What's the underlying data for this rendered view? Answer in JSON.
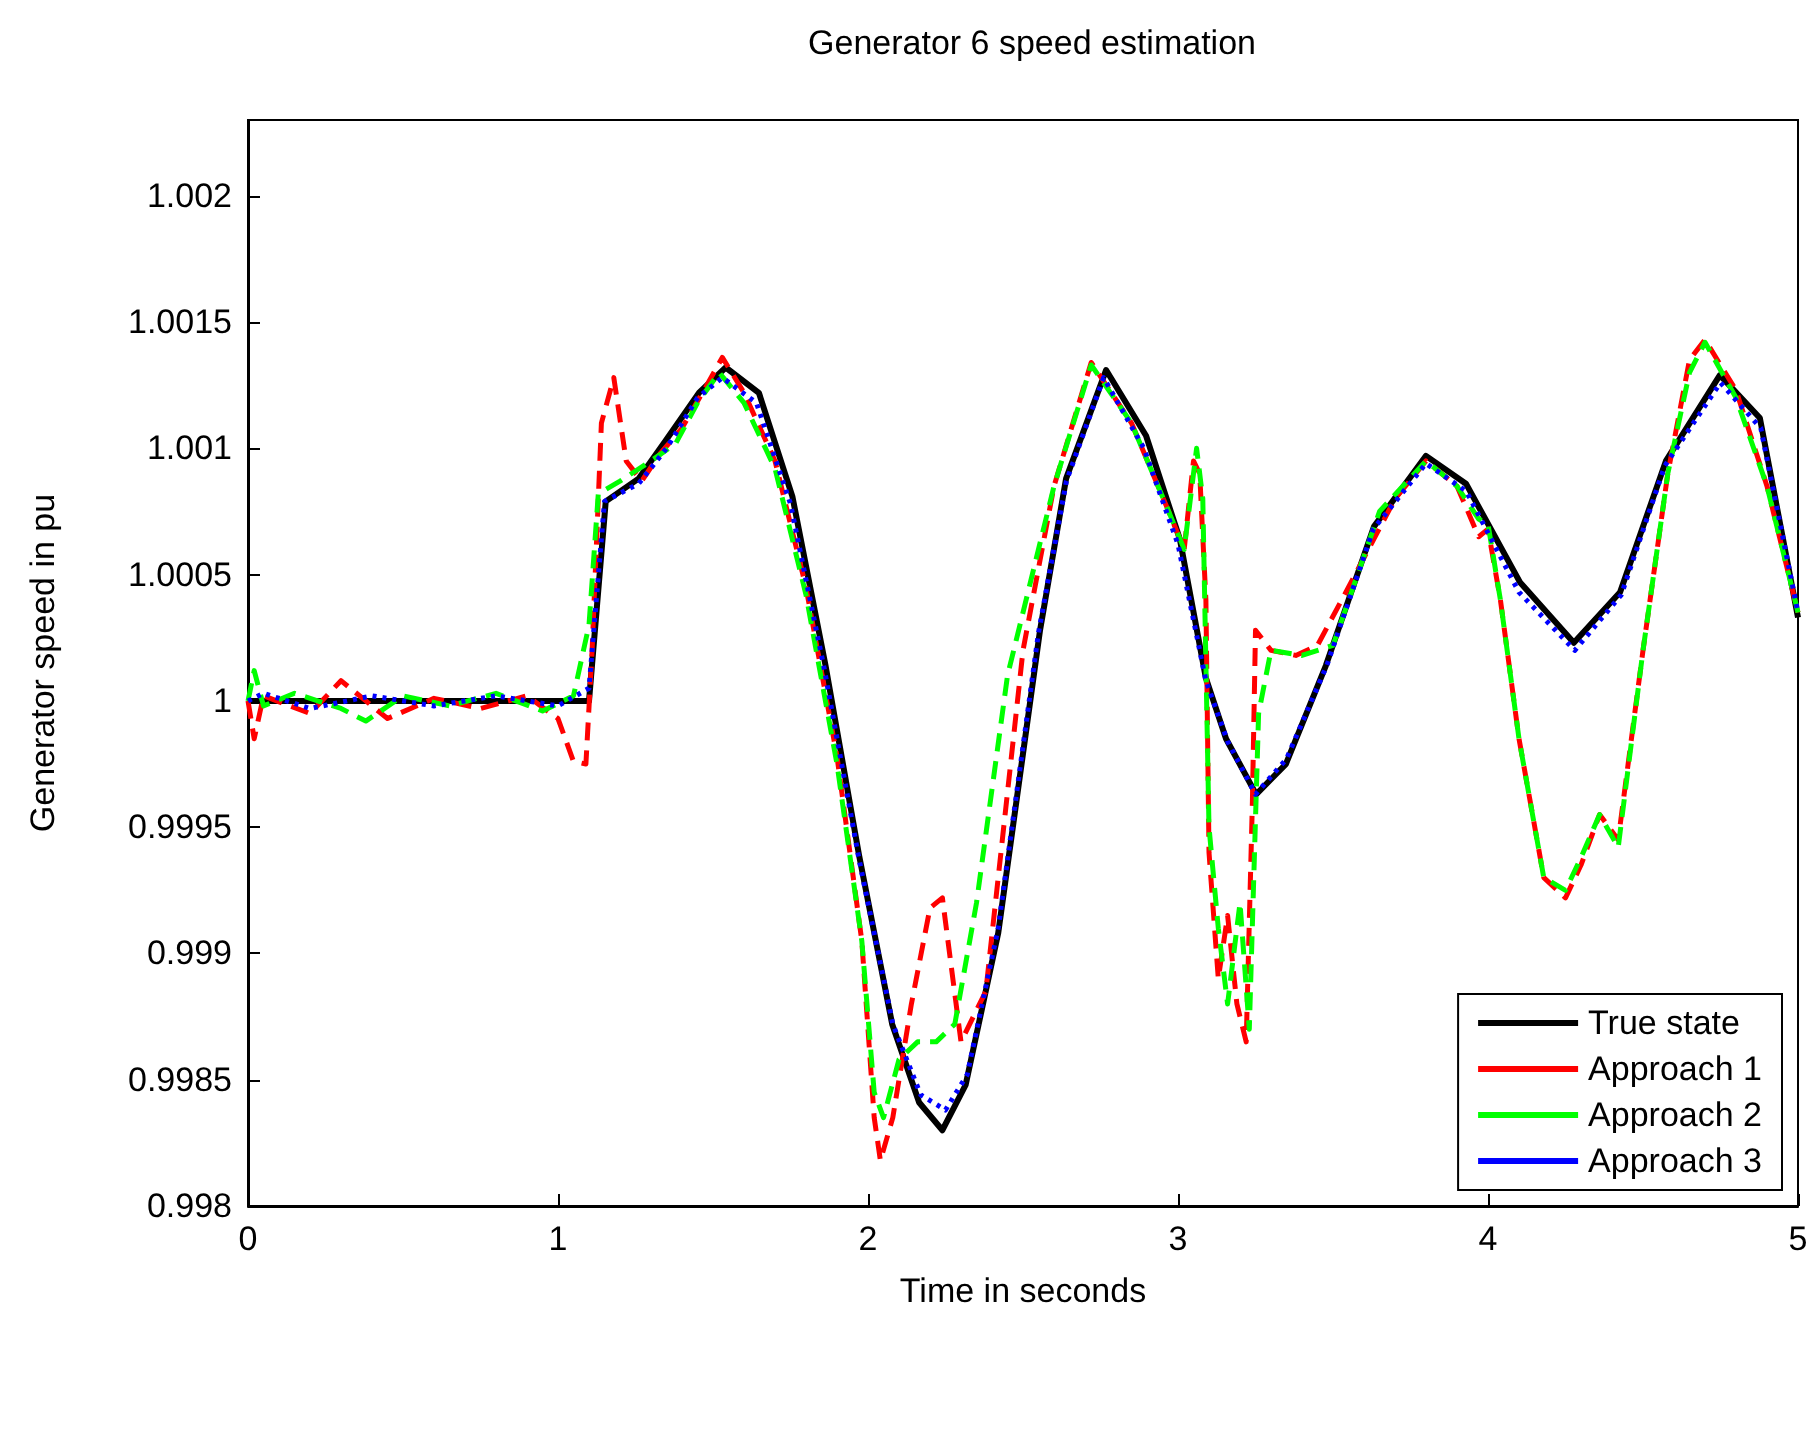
{
  "chart_data": {
    "type": "line",
    "title": "Generator 6 speed estimation",
    "xlabel": "Time in seconds",
    "ylabel": "Generator speed in pu",
    "xlim": [
      0,
      5
    ],
    "xticks": [
      0,
      1,
      2,
      3,
      4,
      5
    ],
    "ylim": [
      0.998,
      1.0023
    ],
    "yticks": [
      0.998,
      0.9985,
      0.999,
      0.9995,
      1,
      1.0005,
      1.001,
      1.0015,
      1.002
    ],
    "grid": false,
    "legend": "bottom right",
    "marker": "none",
    "series": [
      {
        "name": "True state",
        "color": "#000000",
        "line_style": "solid",
        "x": [
          0,
          1.1,
          1.154,
          1.26,
          1.347,
          1.455,
          1.541,
          1.648,
          1.756,
          1.863,
          1.971,
          2.078,
          2.165,
          2.24,
          2.315,
          2.42,
          2.555,
          2.639,
          2.768,
          2.897,
          3.006,
          3.09,
          3.155,
          3.252,
          3.348,
          3.477,
          3.632,
          3.8,
          3.929,
          4.103,
          4.277,
          4.426,
          4.574,
          4.748,
          4.877,
          5
        ],
        "values": [
          1,
          1,
          1.00079,
          1.00088,
          1.00103,
          1.00122,
          1.00132,
          1.00122,
          1.00081,
          1.00014,
          0.99939,
          0.99872,
          0.99841,
          0.9983,
          0.99848,
          0.99908,
          1.00028,
          1.00088,
          1.00131,
          1.00105,
          1.00064,
          1.00009,
          0.99985,
          0.99963,
          0.99975,
          1.00014,
          1.00069,
          1.00097,
          1.00086,
          1.00047,
          1.00023,
          1.00043,
          1.00095,
          1.00129,
          1.00112,
          1.00033
        ]
      },
      {
        "name": "Approach 1",
        "color": "#ff0000",
        "line_style": "dashed",
        "x": [
          0,
          0.02,
          0.05,
          0.2,
          0.3,
          0.35,
          0.45,
          0.6,
          0.75,
          0.9,
          1.0,
          1.05,
          1.09,
          1.11,
          1.14,
          1.18,
          1.22,
          1.27,
          1.33,
          1.4,
          1.48,
          1.53,
          1.6,
          1.7,
          1.8,
          1.9,
          1.98,
          2.02,
          2.04,
          2.08,
          2.14,
          2.2,
          2.24,
          2.3,
          2.38,
          2.5,
          2.6,
          2.72,
          2.85,
          2.97,
          3.02,
          3.05,
          3.07,
          3.09,
          3.1,
          3.13,
          3.16,
          3.19,
          3.22,
          3.24,
          3.25,
          3.3,
          3.38,
          3.45,
          3.55,
          3.7,
          3.8,
          3.9,
          3.97,
          4.0,
          4.04,
          4.1,
          4.18,
          4.25,
          4.3,
          4.36,
          4.42,
          4.5,
          4.58,
          4.65,
          4.7,
          4.8,
          4.9,
          5
        ],
        "values": [
          1,
          0.99985,
          1.00002,
          0.99995,
          1.00008,
          1.00003,
          0.99993,
          1.00001,
          0.99997,
          1.00002,
          0.99993,
          0.99976,
          0.99975,
          1.0002,
          1.0011,
          1.00128,
          1.00095,
          1.00087,
          1.00098,
          1.00108,
          1.00125,
          1.00136,
          1.00122,
          1.00095,
          1.00045,
          0.99978,
          0.99905,
          0.99835,
          0.99818,
          0.99835,
          0.9988,
          0.99918,
          0.99922,
          0.99865,
          0.99885,
          1.0002,
          1.00085,
          1.00134,
          1.0011,
          1.00075,
          1.0006,
          1.00095,
          1.0009,
          1.0004,
          0.9994,
          0.9989,
          0.99915,
          0.9988,
          0.99865,
          0.9996,
          1.00028,
          1.0002,
          1.00018,
          1.00022,
          1.00045,
          1.0008,
          1.00095,
          1.00085,
          1.00065,
          1.00068,
          1.0004,
          0.99985,
          0.9993,
          0.99922,
          0.99935,
          0.99955,
          0.99945,
          1.0002,
          1.0009,
          1.00135,
          1.00143,
          1.00123,
          1.00085,
          1.00035
        ]
      },
      {
        "name": "Approach 2",
        "color": "#00ff00",
        "line_style": "dashed",
        "x": [
          0,
          0.02,
          0.05,
          0.15,
          0.3,
          0.38,
          0.5,
          0.65,
          0.8,
          0.95,
          1.05,
          1.1,
          1.13,
          1.2,
          1.3,
          1.38,
          1.45,
          1.52,
          1.6,
          1.7,
          1.8,
          1.9,
          1.98,
          2.02,
          2.05,
          2.1,
          2.16,
          2.22,
          2.28,
          2.35,
          2.45,
          2.6,
          2.72,
          2.85,
          2.97,
          3.02,
          3.06,
          3.08,
          3.1,
          3.13,
          3.16,
          3.2,
          3.23,
          3.26,
          3.3,
          3.4,
          3.5,
          3.65,
          3.8,
          3.9,
          3.97,
          4.0,
          4.04,
          4.1,
          4.18,
          4.25,
          4.3,
          4.36,
          4.42,
          4.5,
          4.58,
          4.65,
          4.7,
          4.8,
          4.9,
          5
        ],
        "values": [
          1,
          1.00012,
          0.99998,
          1.00003,
          0.99997,
          0.99992,
          1.00002,
          0.99998,
          1.00003,
          0.99996,
          1.00002,
          1.0003,
          1.00082,
          1.00087,
          1.00095,
          1.00102,
          1.00118,
          1.0013,
          1.00118,
          1.00092,
          1.00042,
          0.99975,
          0.99905,
          0.99845,
          0.99835,
          0.99858,
          0.99865,
          0.99865,
          0.99872,
          0.9992,
          1.0001,
          1.00085,
          1.00133,
          1.0011,
          1.00075,
          1.0006,
          1.001,
          1.0008,
          0.9995,
          0.9991,
          0.9988,
          0.9992,
          0.9987,
          0.99995,
          1.0002,
          1.00018,
          1.00022,
          1.00075,
          1.00095,
          1.00085,
          1.00072,
          1.0007,
          1.0004,
          0.99985,
          0.9993,
          0.99925,
          0.99938,
          0.99955,
          0.99942,
          1.0002,
          1.0009,
          1.0013,
          1.00142,
          1.0012,
          1.00085,
          1.00035
        ]
      },
      {
        "name": "Approach 3",
        "color": "#0000ff",
        "line_style": "dotted",
        "x": [
          0,
          0.05,
          0.2,
          0.4,
          0.6,
          0.8,
          1.0,
          1.1,
          1.15,
          1.26,
          1.35,
          1.45,
          1.53,
          1.64,
          1.75,
          1.86,
          1.97,
          2.08,
          2.17,
          2.25,
          2.32,
          2.42,
          2.55,
          2.64,
          2.76,
          2.89,
          3.0,
          3.09,
          3.16,
          3.25,
          3.35,
          3.48,
          3.63,
          3.8,
          3.93,
          4.1,
          4.28,
          4.43,
          4.57,
          4.75,
          4.88,
          5
        ],
        "values": [
          1,
          1.00003,
          0.99997,
          1.00002,
          0.99998,
          1.00002,
          0.99998,
          1.00005,
          1.00079,
          1.00086,
          1.001,
          1.0012,
          1.00128,
          1.00118,
          1.00078,
          1.00012,
          0.99938,
          0.99872,
          0.99844,
          0.99838,
          0.99852,
          0.9991,
          1.00027,
          1.00087,
          1.00128,
          1.001,
          1.00062,
          1.00008,
          0.99984,
          0.99963,
          0.99977,
          1.00014,
          1.00068,
          1.00094,
          1.00083,
          1.00043,
          1.0002,
          1.00042,
          1.00093,
          1.00126,
          1.00108,
          1.00035
        ]
      }
    ]
  }
}
